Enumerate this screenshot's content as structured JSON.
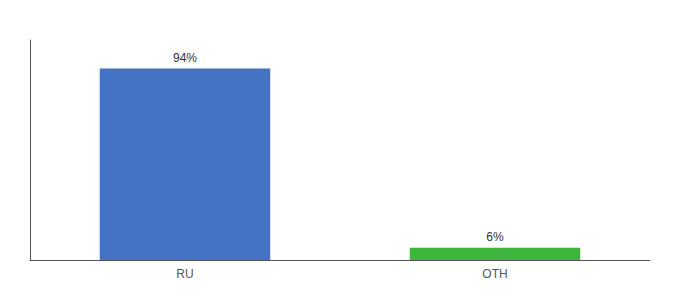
{
  "chart_data": {
    "type": "bar",
    "categories": [
      "RU",
      "OTH"
    ],
    "values": [
      94,
      6
    ],
    "value_labels": [
      "94%",
      "6%"
    ],
    "colors": [
      "#4472c4",
      "#3db53d"
    ],
    "data_labels": true,
    "ylim": [
      0,
      108
    ],
    "tick_labels": "x",
    "grid": false
  }
}
